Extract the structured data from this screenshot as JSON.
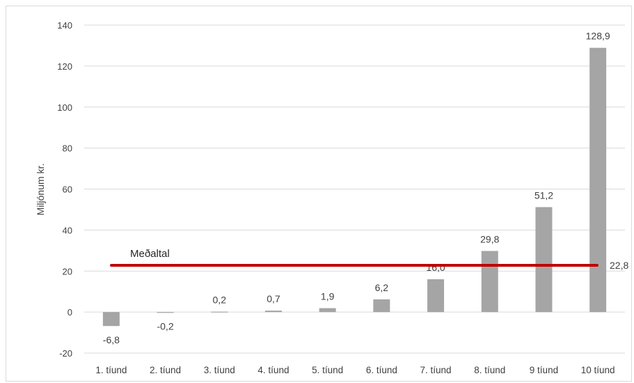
{
  "chart_data": {
    "type": "bar",
    "title": "",
    "xlabel": "",
    "ylabel": "Miljónum kr.",
    "ylim": [
      -20,
      140
    ],
    "yticks": [
      -20,
      0,
      20,
      40,
      60,
      80,
      100,
      120,
      140
    ],
    "ytick_labels": [
      "-20",
      "0",
      "20",
      "40",
      "60",
      "80",
      "100",
      "120",
      "140"
    ],
    "grid": true,
    "categories": [
      "1. tíund",
      "2. tíund",
      "3. tíund",
      "4. tíund",
      "5. tíund",
      "6. tíund",
      "7. tíund",
      "8. tíund",
      "9 tíund",
      "10 tíund"
    ],
    "values": [
      -6.8,
      -0.2,
      0.2,
      0.7,
      1.9,
      6.2,
      16.0,
      29.8,
      51.2,
      128.9
    ],
    "data_labels": [
      "-6,8",
      "-0,2",
      "0,2",
      "0,7",
      "1,9",
      "6,2",
      "16,0",
      "29,8",
      "51,2",
      "128,9"
    ],
    "bar_color": "#a5a5a5",
    "average": {
      "label": "Meðaltal",
      "value": 22.8,
      "value_label": "22,8",
      "color": "#c00000"
    }
  }
}
